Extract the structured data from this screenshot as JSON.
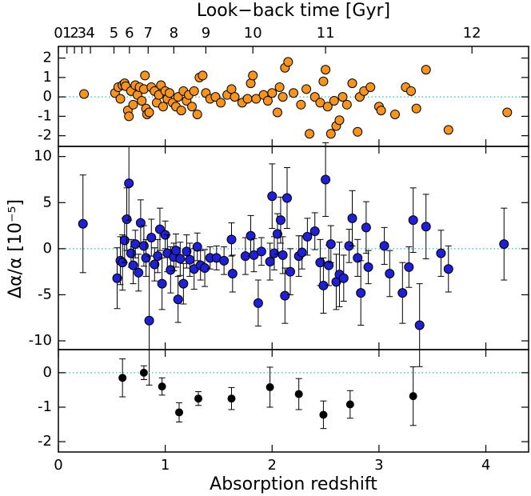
{
  "chart_data": [
    {
      "type": "scatter",
      "x2label": "Look−back time [Gyr]",
      "x2ticks": [
        {
          "value": 0,
          "label": "0"
        },
        {
          "value": 0.08,
          "label": "1"
        },
        {
          "value": 0.15,
          "label": "2"
        },
        {
          "value": 0.22,
          "label": "3"
        },
        {
          "value": 0.3,
          "label": "4"
        },
        {
          "value": 0.52,
          "label": "5"
        },
        {
          "value": 0.665,
          "label": "6"
        },
        {
          "value": 0.84,
          "label": "7"
        },
        {
          "value": 1.08,
          "label": "8"
        },
        {
          "value": 1.38,
          "label": "9"
        },
        {
          "value": 1.82,
          "label": "10"
        },
        {
          "value": 2.5,
          "label": "11"
        },
        {
          "value": 3.87,
          "label": "12"
        }
      ],
      "xlim": [
        0,
        4.4
      ],
      "ylim": [
        -2.55,
        2.6
      ],
      "yticks": [
        -2,
        -1,
        0,
        1,
        2
      ],
      "color": "#f7941d",
      "reference_line": true,
      "reference_color": "#4cc9c9",
      "x": [
        0.24,
        0.53,
        0.56,
        0.58,
        0.6,
        0.62,
        0.63,
        0.65,
        0.66,
        0.68,
        0.7,
        0.72,
        0.74,
        0.76,
        0.78,
        0.8,
        0.81,
        0.82,
        0.83,
        0.85,
        0.87,
        0.9,
        0.92,
        0.94,
        0.96,
        0.98,
        1.0,
        1.02,
        1.04,
        1.07,
        1.1,
        1.12,
        1.15,
        1.17,
        1.2,
        1.22,
        1.25,
        1.27,
        1.3,
        1.32,
        1.35,
        1.38,
        1.42,
        1.47,
        1.52,
        1.58,
        1.62,
        1.65,
        1.72,
        1.77,
        1.8,
        1.82,
        1.85,
        1.92,
        1.96,
        2.0,
        2.05,
        2.07,
        2.1,
        2.12,
        2.15,
        2.2,
        2.27,
        2.32,
        2.35,
        2.4,
        2.45,
        2.48,
        2.5,
        2.52,
        2.55,
        2.58,
        2.6,
        2.63,
        2.66,
        2.7,
        2.75,
        2.8,
        2.82,
        2.86,
        2.92,
        3.0,
        3.02,
        3.15,
        3.25,
        3.3,
        3.35,
        3.44,
        3.65,
        4.2
      ],
      "values": [
        0.15,
        0.2,
        0.5,
        -0.1,
        0.6,
        0.7,
        0.55,
        -0.7,
        -1.0,
        0.3,
        -0.4,
        0.6,
        0.1,
        0.5,
        -0.2,
        0.4,
        1.1,
        -0.6,
        -0.9,
        -0.8,
        0.5,
        0.3,
        -0.3,
        0.1,
        0.6,
        -0.5,
        0.3,
        -0.1,
        0.2,
        -0.3,
        -0.5,
        0.0,
        -0.7,
        0.3,
        -0.2,
        0.1,
        -0.5,
        0.3,
        -0.9,
        1.0,
        1.1,
        0.2,
        -0.1,
        0.0,
        -0.3,
        0.1,
        0.4,
        0.0,
        -0.3,
        -0.1,
        0.7,
        1.1,
        -0.1,
        0.1,
        -0.2,
        0.2,
        -0.8,
        0.5,
        0.0,
        1.5,
        1.8,
        0.2,
        -0.4,
        0.4,
        -1.9,
        0.0,
        -0.3,
        0.8,
        1.4,
        -0.5,
        -1.9,
        -0.2,
        -1.5,
        -1.2,
        0.0,
        -0.4,
        0.7,
        -1.8,
        0.0,
        0.3,
        0.5,
        -0.5,
        -0.7,
        -0.9,
        0.5,
        0.3,
        -0.6,
        1.4,
        -1.7,
        -0.8
      ]
    },
    {
      "type": "scatter",
      "ylabel": "Δα/α [10⁻⁵]",
      "xlim": [
        0,
        4.4
      ],
      "ylim": [
        -10.95,
        11.1
      ],
      "yticks": [
        -10,
        -5,
        0,
        5,
        10
      ],
      "color": "#1f1fd6",
      "reference_line": true,
      "reference_color": "#4cc9c9",
      "x": [
        0.23,
        0.55,
        0.58,
        0.6,
        0.62,
        0.64,
        0.66,
        0.68,
        0.7,
        0.72,
        0.75,
        0.77,
        0.8,
        0.82,
        0.85,
        0.87,
        0.9,
        0.93,
        0.95,
        0.97,
        1.0,
        1.02,
        1.05,
        1.08,
        1.1,
        1.12,
        1.14,
        1.17,
        1.2,
        1.23,
        1.27,
        1.3,
        1.33,
        1.37,
        1.42,
        1.48,
        1.55,
        1.62,
        1.63,
        1.75,
        1.8,
        1.83,
        1.87,
        1.9,
        1.98,
        2.0,
        2.02,
        2.05,
        2.08,
        2.1,
        2.12,
        2.14,
        2.17,
        2.25,
        2.28,
        2.33,
        2.4,
        2.45,
        2.48,
        2.5,
        2.53,
        2.55,
        2.6,
        2.63,
        2.67,
        2.72,
        2.75,
        2.8,
        2.83,
        2.88,
        2.9,
        3.05,
        3.1,
        3.22,
        3.28,
        3.32,
        3.38,
        3.44,
        3.58,
        3.65,
        4.17
      ],
      "values": [
        2.7,
        -3.2,
        -1.3,
        -1.5,
        0.9,
        3.2,
        7.1,
        -0.5,
        -1.8,
        0.5,
        -2.6,
        2.8,
        0.3,
        -1,
        -7.8,
        1.2,
        -1.7,
        -0.8,
        2.1,
        -3.8,
        1.5,
        -0.5,
        -2.3,
        -0.9,
        -0.2,
        -5.5,
        -1.1,
        -3.8,
        -0.3,
        -1.2,
        -2.2,
        0.2,
        -1.8,
        -2.1,
        -1,
        -1,
        -1.3,
        1,
        -2.7,
        -0.8,
        1.4,
        -0.7,
        -5.9,
        -0.3,
        -1.4,
        5.7,
        -0.5,
        1.6,
        3.1,
        -0.7,
        -5.1,
        5.5,
        -2.5,
        -0.8,
        -0.4,
        1.3,
        1.9,
        -1.5,
        -4,
        7.5,
        -1.8,
        0.5,
        -3.6,
        -2.8,
        -3.2,
        0.3,
        3.3,
        -1,
        -4.8,
        2.3,
        -2,
        0.3,
        -2.7,
        -4.8,
        -2,
        3.1,
        -8.3,
        2.4,
        -0.5,
        -2.2,
        0.5
      ],
      "errors": [
        5.3,
        3.3,
        2.6,
        3,
        2.4,
        3.4,
        4,
        1.5,
        2,
        1.5,
        2,
        2.5,
        2.2,
        2,
        7,
        2,
        1.8,
        1.8,
        2.3,
        2.8,
        1.5,
        2,
        2.5,
        1.5,
        1.8,
        2.5,
        1.8,
        2.2,
        1.8,
        1.8,
        2.2,
        1.5,
        1.6,
        2,
        1.2,
        1.3,
        1.5,
        1.8,
        2,
        2,
        2.2,
        1.8,
        2.5,
        1.5,
        2,
        3.5,
        1.8,
        2.2,
        2.5,
        2,
        3,
        3.3,
        2.5,
        2.2,
        1.8,
        2,
        2,
        2.5,
        3,
        4,
        2.2,
        2,
        3,
        3.5,
        2.5,
        1.8,
        3,
        2,
        3.5,
        2.8,
        1.8,
        2,
        2.5,
        3.3,
        2.2,
        3.5,
        4.5,
        3.5,
        2.5,
        2.5,
        3.9
      ]
    },
    {
      "type": "scatter",
      "xlabel": "Absorption redshift",
      "xlim": [
        0,
        4.4
      ],
      "xticks": [
        0,
        1,
        2,
        3,
        4
      ],
      "ylim": [
        -2.3,
        0.67
      ],
      "yticks": [
        -2,
        -1,
        0
      ],
      "color": "#000000",
      "reference_line": true,
      "reference_color": "#4cc9c9",
      "x": [
        0.6,
        0.8,
        0.97,
        1.13,
        1.31,
        1.62,
        1.98,
        2.25,
        2.48,
        2.73,
        3.32
      ],
      "values": [
        -0.15,
        0.0,
        -0.4,
        -1.15,
        -0.75,
        -0.75,
        -0.42,
        -0.62,
        -1.22,
        -0.92,
        -0.68
      ],
      "errors": [
        0.55,
        0.2,
        0.25,
        0.28,
        0.2,
        0.32,
        0.58,
        0.45,
        0.4,
        0.4,
        0.85
      ]
    }
  ]
}
